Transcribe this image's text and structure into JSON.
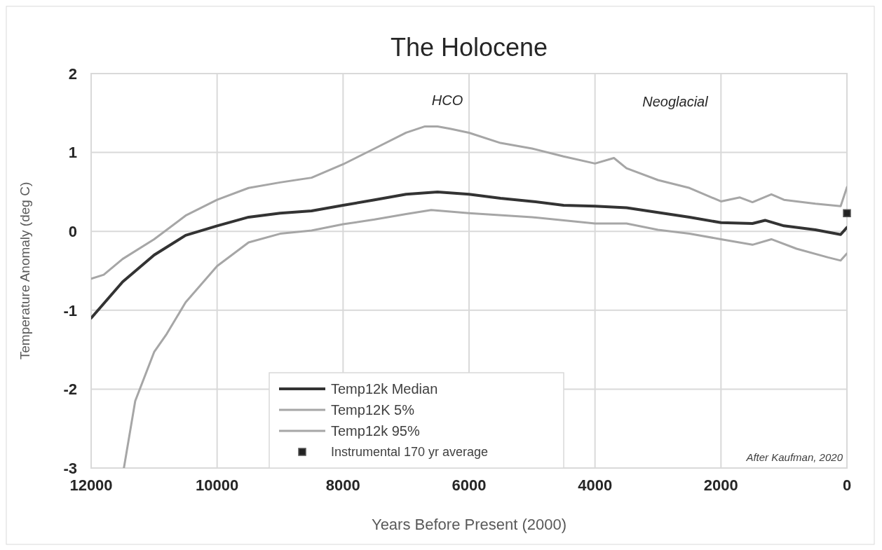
{
  "chart_data": {
    "type": "line",
    "title": "The Holocene",
    "xlabel": "Years Before Present (2000)",
    "ylabel": "Temperature Anomaly (deg C)",
    "xlim": [
      12000,
      0
    ],
    "xticks": [
      12000,
      10000,
      8000,
      6000,
      4000,
      2000,
      0
    ],
    "ylim": [
      -3,
      2
    ],
    "yticks": [
      -3,
      -2,
      -1,
      0,
      1,
      2
    ],
    "grid": true,
    "legend": "bottom",
    "line_style": "solid",
    "annotations": [
      "HCO",
      "Neoglacial",
      "After Kaufman, 2020"
    ],
    "series": [
      {
        "name": "Temp12k Median",
        "color": "#333333",
        "x": [
          12000,
          11500,
          11000,
          10500,
          10000,
          9500,
          9000,
          8500,
          8000,
          7500,
          7000,
          6500,
          6000,
          5500,
          5000,
          4500,
          4000,
          3500,
          3000,
          2500,
          2000,
          1500,
          1300,
          1000,
          500,
          100,
          0
        ],
        "values": [
          -1.1,
          -0.64,
          -0.3,
          -0.05,
          0.07,
          0.18,
          0.23,
          0.26,
          0.33,
          0.4,
          0.47,
          0.5,
          0.47,
          0.42,
          0.38,
          0.33,
          0.32,
          0.3,
          0.24,
          0.18,
          0.11,
          0.1,
          0.14,
          0.07,
          0.02,
          -0.04,
          0.05
        ]
      },
      {
        "name": "Temp12K 5%",
        "color": "#a6a6a6",
        "x": [
          11480,
          11300,
          11000,
          10800,
          10500,
          10000,
          9500,
          9000,
          8500,
          8000,
          7500,
          7000,
          6600,
          6000,
          5000,
          4000,
          3500,
          3000,
          2500,
          2000,
          1500,
          1200,
          800,
          300,
          100,
          0
        ],
        "values": [
          -3,
          -2.15,
          -1.53,
          -1.3,
          -0.9,
          -0.44,
          -0.14,
          -0.03,
          0.01,
          0.09,
          0.15,
          0.22,
          0.27,
          0.23,
          0.18,
          0.1,
          0.1,
          0.02,
          -0.03,
          -0.1,
          -0.17,
          -0.1,
          -0.22,
          -0.33,
          -0.37,
          -0.28
        ]
      },
      {
        "name": "Temp12k 95%",
        "color": "#a6a6a6",
        "x": [
          12000,
          11800,
          11500,
          11000,
          10500,
          10000,
          9500,
          9000,
          8500,
          8000,
          7500,
          7000,
          6700,
          6500,
          6300,
          6000,
          5500,
          5000,
          4500,
          4000,
          3700,
          3500,
          3000,
          2500,
          2000,
          1700,
          1500,
          1200,
          1000,
          500,
          100,
          0
        ],
        "values": [
          -0.6,
          -0.55,
          -0.35,
          -0.1,
          0.2,
          0.4,
          0.55,
          0.62,
          0.68,
          0.85,
          1.05,
          1.25,
          1.33,
          1.33,
          1.3,
          1.25,
          1.12,
          1.05,
          0.95,
          0.86,
          0.93,
          0.8,
          0.65,
          0.55,
          0.38,
          0.43,
          0.37,
          0.47,
          0.4,
          0.35,
          0.32,
          0.56
        ]
      },
      {
        "name": "Instrumental 170 yr average",
        "type": "scatter",
        "marker": "square",
        "color": "#222222",
        "x": [
          0
        ],
        "values": [
          0.23
        ]
      }
    ]
  }
}
